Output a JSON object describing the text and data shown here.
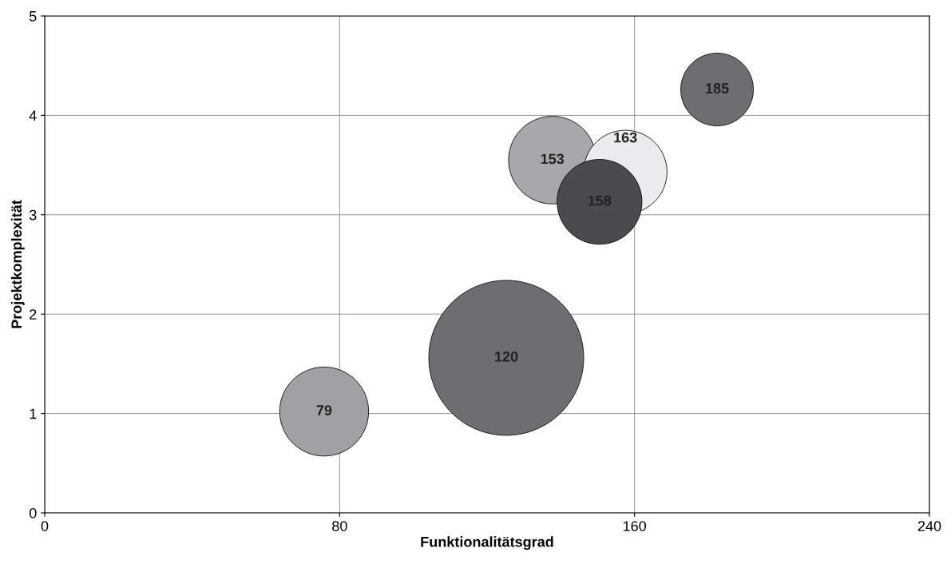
{
  "chart_data": {
    "type": "bubble",
    "xlabel": "Funktionalitätsgrad",
    "ylabel": "Projektkomplexität",
    "x": [
      75.8,
      125.2,
      137.7,
      157.5,
      150.5,
      182.4
    ],
    "values": [
      1.02,
      1.56,
      3.55,
      3.43,
      3.13,
      4.26
    ],
    "sizes": [
      0.33,
      1,
      0.32,
      0.29,
      0.3,
      0.22
    ],
    "colors": [
      "#a0a1a4",
      "#6d6e72",
      "#a7a8ab",
      "#ececee",
      "#4a4b4f",
      "#6d6e72"
    ],
    "annotations": [
      {
        "text": "79",
        "x": 75.8,
        "y": 1.02
      },
      {
        "text": "120",
        "x": 125.2,
        "y": 1.56
      },
      {
        "text": "153",
        "x": 137.7,
        "y": 3.55
      },
      {
        "text": "163",
        "x": 157.5,
        "y": 3.43
      },
      {
        "text": "158",
        "x": 150.5,
        "y": 3.13
      },
      {
        "text": "185",
        "x": 182.4,
        "y": 4.26
      }
    ],
    "xlim": [
      0,
      240
    ],
    "xticks": [
      0,
      80,
      160,
      240
    ],
    "ylim": [
      0,
      5
    ],
    "yticks": [
      0,
      1,
      2,
      3,
      4,
      5
    ],
    "grid": true
  }
}
